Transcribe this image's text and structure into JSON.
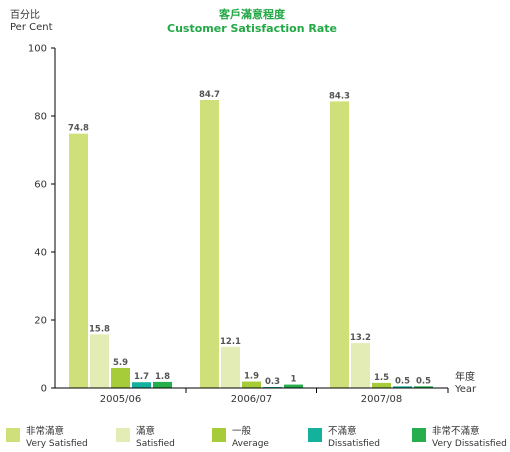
{
  "chart_data": {
    "type": "bar",
    "title_zh": "客戶滿意程度",
    "title_en": "Customer Satisfaction Rate",
    "ylabel_zh": "百分比",
    "ylabel_en": "Per Cent",
    "xlabel_zh": "年度",
    "xlabel_en": "Year",
    "ylim": [
      0,
      100
    ],
    "yticks": [
      "0",
      "20",
      "40",
      "60",
      "80",
      "100"
    ],
    "categories": [
      "2005/06",
      "2006/07",
      "2007/08"
    ],
    "series": [
      {
        "name_zh": "非常滿意",
        "name_en": "Very Satisfied",
        "color": "#cfe07a",
        "values": [
          74.8,
          84.7,
          84.3
        ],
        "labels": [
          "74.8",
          "84.7",
          "84.3"
        ]
      },
      {
        "name_zh": "滿意",
        "name_en": "Satisfied",
        "color": "#e4ecb6",
        "values": [
          15.8,
          12.1,
          13.2
        ],
        "labels": [
          "15.8",
          "12.1",
          "13.2"
        ]
      },
      {
        "name_zh": "一般",
        "name_en": "Average",
        "color": "#a6cc3a",
        "values": [
          5.9,
          1.9,
          1.5
        ],
        "labels": [
          "5.9",
          "1.9",
          "1.5"
        ]
      },
      {
        "name_zh": "不滿意",
        "name_en": "Dissatisfied",
        "color": "#14b29c",
        "values": [
          1.7,
          0.3,
          0.5
        ],
        "labels": [
          "1.7",
          "0.3",
          "0.5"
        ]
      },
      {
        "name_zh": "非常不滿意",
        "name_en": "Very Dissatisfied",
        "color": "#26ad4c",
        "values": [
          1.8,
          1,
          0.5
        ],
        "labels": [
          "1.8",
          "1",
          "0.5"
        ]
      }
    ],
    "legend_position": "bottom",
    "grid": false
  }
}
